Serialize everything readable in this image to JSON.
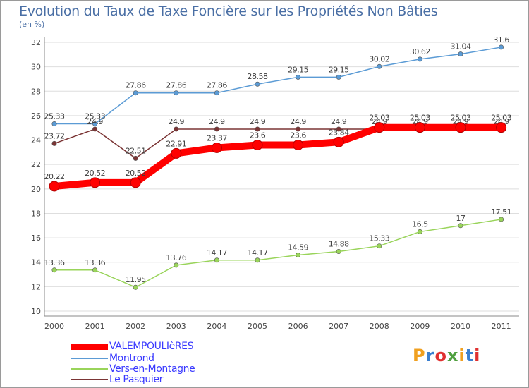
{
  "title": "Evolution du Taux de Taxe Foncière sur les Propriétés Non Bâties",
  "unit": "(en %)",
  "logo": "Proxiti",
  "chart_data": {
    "type": "line",
    "title": "Evolution du Taux de Taxe Foncière sur les Propriétés Non Bâties",
    "ylabel": "(en %)",
    "xlabel": "",
    "ylim": [
      10,
      32
    ],
    "yticks": [
      "10",
      "12",
      "14",
      "16",
      "18",
      "20",
      "22",
      "24",
      "26",
      "28",
      "30",
      "32"
    ],
    "categories": [
      "2000",
      "2001",
      "2002",
      "2003",
      "2004",
      "2005",
      "2006",
      "2007",
      "2008",
      "2009",
      "2010",
      "2011"
    ],
    "grid": "horizontal",
    "legend_position": "bottom-left",
    "series": [
      {
        "name": "Montrond",
        "color": "#5b9bd5",
        "values": [
          25.33,
          25.33,
          27.86,
          27.86,
          27.86,
          28.58,
          29.15,
          29.15,
          30.02,
          30.62,
          31.04,
          31.6
        ],
        "labels": [
          "25.33",
          "25.33",
          "27.86",
          "27.86",
          "27.86",
          "28.58",
          "29.15",
          "29.15",
          "30.02",
          "30.62",
          "31.04",
          "31.6"
        ]
      },
      {
        "name": "Le Pasquier",
        "color": "#7b3535",
        "values": [
          23.72,
          24.9,
          22.51,
          24.9,
          24.9,
          24.9,
          24.9,
          24.9,
          24.9,
          24.9,
          24.9,
          24.9
        ],
        "labels": [
          "23.72",
          "24.9",
          "22.51",
          "24.9",
          "24.9",
          "24.9",
          "24.9",
          "24.9",
          "24.9",
          "24.9",
          "24.9",
          "24.9"
        ]
      },
      {
        "name": "Vers-en-Montagne",
        "color": "#99d45a",
        "values": [
          13.36,
          13.36,
          11.95,
          13.76,
          14.17,
          14.17,
          14.59,
          14.88,
          15.33,
          16.5,
          17,
          17.51
        ],
        "labels": [
          "13.36",
          "13.36",
          "11.95",
          "13.76",
          "14.17",
          "14.17",
          "14.59",
          "14.88",
          "15.33",
          "16.5",
          "17",
          "17.51"
        ]
      },
      {
        "name": "VALEMPOULIèRES",
        "color": "#ff0000",
        "values": [
          20.22,
          20.52,
          20.52,
          22.91,
          23.37,
          23.6,
          23.6,
          23.84,
          25.03,
          25.03,
          25.03,
          25.03
        ],
        "labels": [
          "20.22",
          "20.52",
          "20.52",
          "22.91",
          "23.37",
          "23.6",
          "23.6",
          "23.84",
          "25.03",
          "25.03",
          "25.03",
          "25.03"
        ]
      }
    ],
    "legend": [
      "VALEMPOULIèRES",
      "Montrond",
      "Vers-en-Montagne",
      "Le Pasquier"
    ]
  }
}
